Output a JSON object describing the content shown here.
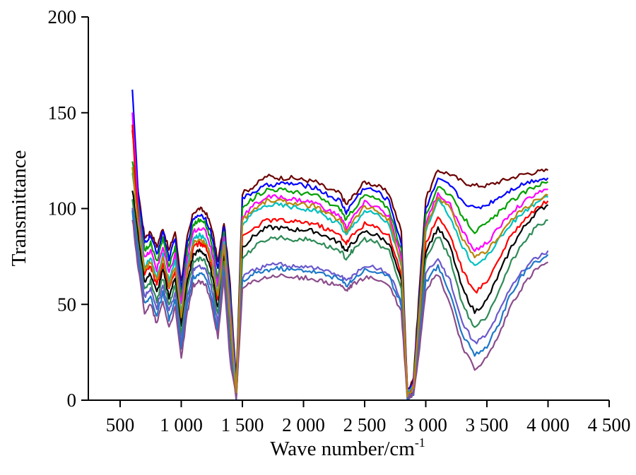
{
  "chart_data": {
    "type": "line",
    "title": "",
    "xlabel": "Wave number/cm",
    "xlabel_superscript": "-1",
    "ylabel": "Transmittance",
    "xlim": [
      240,
      4500
    ],
    "ylim": [
      0,
      200
    ],
    "x_ticks": [
      500,
      1000,
      1500,
      2000,
      2500,
      3000,
      3500,
      4000,
      4500
    ],
    "x_tick_labels": [
      "500",
      "1 000",
      "1 500",
      "2 000",
      "2 500",
      "3 000",
      "3 500",
      "4 000",
      "4 500"
    ],
    "y_ticks": [
      0,
      50,
      100,
      150,
      200
    ],
    "y_tick_labels": [
      "0",
      "50",
      "100",
      "150",
      "200"
    ],
    "grid": false,
    "legend": "none",
    "x": [
      600,
      650,
      700,
      750,
      800,
      850,
      900,
      950,
      1000,
      1050,
      1100,
      1150,
      1200,
      1250,
      1300,
      1350,
      1400,
      1450,
      1500,
      1600,
      1700,
      1800,
      1900,
      2000,
      2100,
      2200,
      2300,
      2350,
      2400,
      2500,
      2600,
      2700,
      2800,
      2850,
      2900,
      2950,
      3000,
      3100,
      3200,
      3300,
      3400,
      3500,
      3600,
      3700,
      3800,
      3900,
      4000
    ],
    "series": [
      {
        "color": "#6b0000",
        "values": [
          140,
          108,
          85,
          88,
          80,
          90,
          78,
          88,
          62,
          85,
          98,
          100,
          98,
          90,
          72,
          93,
          60,
          10,
          108,
          112,
          117,
          116,
          116,
          115,
          114,
          110,
          108,
          102,
          106,
          114,
          112,
          108,
          88,
          5,
          12,
          60,
          105,
          120,
          118,
          114,
          112,
          112,
          114,
          116,
          118,
          119,
          120
        ]
      },
      {
        "color": "#0000ff",
        "values": [
          163,
          105,
          82,
          86,
          76,
          88,
          74,
          84,
          58,
          82,
          95,
          97,
          95,
          86,
          68,
          91,
          56,
          8,
          105,
          109,
          112,
          113,
          113,
          112,
          111,
          107,
          104,
          98,
          103,
          111,
          109,
          104,
          82,
          4,
          10,
          55,
          100,
          115,
          112,
          104,
          100,
          102,
          106,
          110,
          113,
          115,
          116
        ]
      },
      {
        "color": "#00a000",
        "values": [
          125,
          100,
          78,
          82,
          72,
          84,
          70,
          80,
          54,
          78,
          92,
          94,
          92,
          82,
          64,
          88,
          52,
          6,
          100,
          106,
          110,
          110,
          109,
          108,
          107,
          103,
          100,
          94,
          99,
          107,
          105,
          100,
          78,
          3,
          9,
          52,
          96,
          112,
          107,
          96,
          88,
          92,
          98,
          104,
          108,
          112,
          114
        ]
      },
      {
        "color": "#ff00ff",
        "values": [
          150,
          96,
          74,
          78,
          68,
          80,
          66,
          76,
          50,
          74,
          88,
          90,
          88,
          78,
          60,
          85,
          48,
          5,
          96,
          102,
          106,
          106,
          105,
          104,
          103,
          99,
          96,
          90,
          95,
          103,
          101,
          96,
          74,
          3,
          8,
          48,
          92,
          108,
          102,
          88,
          78,
          82,
          90,
          98,
          103,
          108,
          110
        ]
      },
      {
        "color": "#00c0c0",
        "values": [
          118,
          92,
          70,
          74,
          64,
          76,
          62,
          72,
          46,
          70,
          84,
          86,
          84,
          74,
          56,
          82,
          44,
          4,
          92,
          98,
          102,
          102,
          101,
          100,
          99,
          95,
          92,
          86,
          91,
          99,
          97,
          92,
          70,
          2,
          7,
          45,
          88,
          104,
          96,
          80,
          70,
          75,
          84,
          92,
          98,
          103,
          106
        ]
      },
      {
        "color": "#ff0000",
        "values": [
          145,
          88,
          66,
          70,
          60,
          72,
          58,
          68,
          42,
          66,
          80,
          82,
          80,
          70,
          52,
          79,
          40,
          3,
          85,
          90,
          94,
          94,
          93,
          93,
          92,
          89,
          86,
          82,
          86,
          92,
          90,
          86,
          66,
          2,
          6,
          42,
          82,
          96,
          86,
          68,
          56,
          62,
          74,
          86,
          94,
          100,
          104
        ]
      },
      {
        "color": "#000000",
        "values": [
          110,
          84,
          62,
          66,
          56,
          68,
          54,
          64,
          38,
          62,
          76,
          78,
          76,
          66,
          48,
          76,
          36,
          2,
          80,
          86,
          90,
          90,
          89,
          89,
          88,
          85,
          82,
          78,
          82,
          88,
          86,
          82,
          62,
          1,
          5,
          40,
          78,
          90,
          80,
          58,
          46,
          52,
          66,
          80,
          90,
          98,
          102
        ]
      },
      {
        "color": "#2e8b57",
        "values": [
          105,
          80,
          58,
          62,
          52,
          64,
          50,
          60,
          34,
          58,
          72,
          74,
          72,
          62,
          44,
          73,
          32,
          2,
          74,
          80,
          84,
          85,
          84,
          84,
          83,
          80,
          78,
          74,
          78,
          84,
          82,
          78,
          58,
          1,
          4,
          38,
          74,
          86,
          74,
          50,
          38,
          44,
          58,
          72,
          82,
          90,
          94
        ]
      },
      {
        "color": "#6a5acd",
        "values": [
          100,
          76,
          54,
          58,
          48,
          60,
          46,
          56,
          30,
          54,
          68,
          70,
          68,
          58,
          40,
          70,
          28,
          1,
          64,
          68,
          70,
          71,
          70,
          70,
          69,
          67,
          65,
          62,
          65,
          70,
          69,
          66,
          52,
          1,
          4,
          34,
          66,
          74,
          62,
          40,
          30,
          34,
          46,
          60,
          68,
          74,
          78
        ]
      },
      {
        "color": "#1e78c8",
        "values": [
          98,
          72,
          50,
          54,
          44,
          56,
          42,
          52,
          26,
          50,
          64,
          66,
          64,
          54,
          36,
          67,
          24,
          1,
          62,
          66,
          68,
          69,
          68,
          68,
          67,
          65,
          63,
          60,
          63,
          68,
          67,
          64,
          50,
          1,
          3,
          30,
          62,
          70,
          56,
          34,
          24,
          28,
          40,
          56,
          66,
          72,
          76
        ]
      },
      {
        "color": "#8b4c8b",
        "values": [
          95,
          68,
          46,
          50,
          40,
          52,
          38,
          48,
          22,
          46,
          60,
          62,
          60,
          50,
          32,
          64,
          20,
          1,
          58,
          62,
          64,
          65,
          64,
          64,
          63,
          61,
          60,
          57,
          60,
          64,
          63,
          60,
          46,
          1,
          3,
          28,
          58,
          66,
          50,
          28,
          16,
          22,
          34,
          50,
          60,
          68,
          72
        ]
      },
      {
        "color": "#b8860b",
        "values": [
          122,
          90,
          68,
          72,
          62,
          74,
          60,
          70,
          44,
          68,
          82,
          84,
          82,
          72,
          54,
          80,
          42,
          3,
          94,
          100,
          104,
          104,
          103,
          102,
          101,
          97,
          94,
          88,
          93,
          101,
          99,
          94,
          72,
          2,
          7,
          46,
          90,
          106,
          100,
          84,
          74,
          78,
          86,
          94,
          100,
          104,
          107
        ]
      }
    ]
  }
}
